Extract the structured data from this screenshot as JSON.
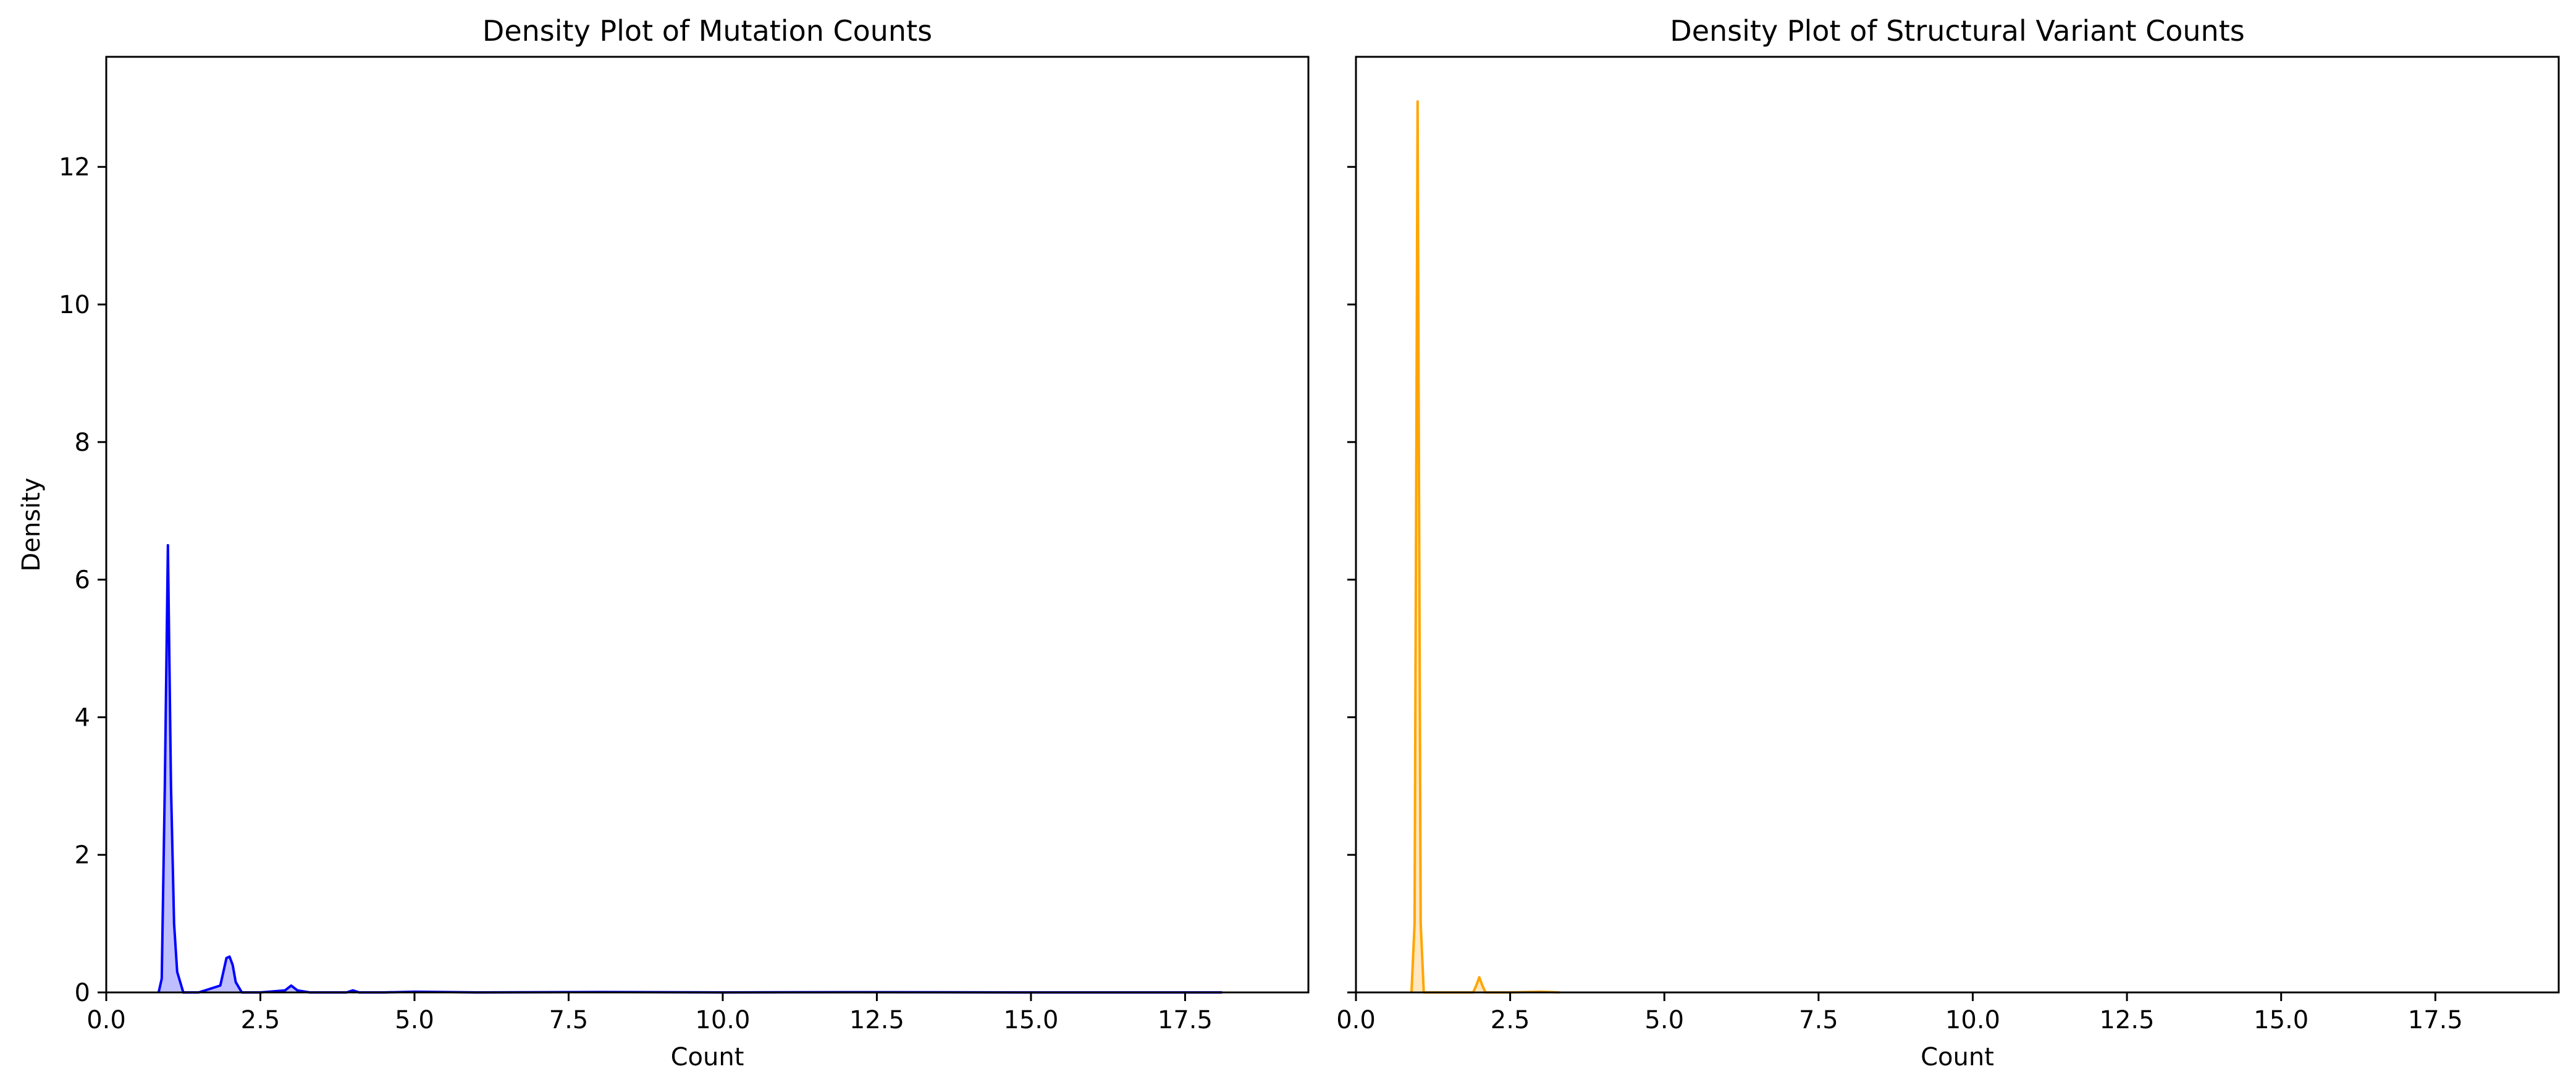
{
  "chart_data": [
    {
      "type": "area",
      "title": "Density Plot of Mutation Counts",
      "xlabel": "Count",
      "ylabel": "Density",
      "xlim": [
        0,
        19.5
      ],
      "ylim": [
        0,
        13.6
      ],
      "xticks": [
        "0.0",
        "2.5",
        "5.0",
        "7.5",
        "10.0",
        "12.5",
        "15.0",
        "17.5"
      ],
      "yticks": [
        "0",
        "2",
        "4",
        "6",
        "8",
        "10",
        "12"
      ],
      "color": "#0000ff",
      "fill_opacity": 0.25,
      "series": [
        {
          "x": [
            0.85,
            0.9,
            0.95,
            1.0,
            1.05,
            1.1,
            1.15,
            1.25,
            1.5,
            1.85,
            1.95,
            2.0,
            2.05,
            2.1,
            2.2,
            2.5,
            2.9,
            3.0,
            3.1,
            3.3,
            3.9,
            4.0,
            4.1,
            4.5,
            5.0,
            6.0,
            8.0,
            10.0,
            12.0,
            15.0,
            18.1
          ],
          "y": [
            0,
            0.2,
            3.0,
            6.5,
            3.0,
            1.0,
            0.3,
            0,
            0,
            0.1,
            0.5,
            0.52,
            0.4,
            0.15,
            0,
            0,
            0.03,
            0.1,
            0.03,
            0,
            0,
            0.03,
            0,
            0,
            0.01,
            0,
            0.005,
            0,
            0.004,
            0,
            0
          ]
        }
      ]
    },
    {
      "type": "area",
      "title": "Density Plot of Structural Variant Counts",
      "xlabel": "Count",
      "ylabel": "",
      "xlim": [
        0,
        19.5
      ],
      "ylim": [
        0,
        13.6
      ],
      "xticks": [
        "0.0",
        "2.5",
        "5.0",
        "7.5",
        "10.0",
        "12.5",
        "15.0",
        "17.5"
      ],
      "yticks": [],
      "color": "#ffa500",
      "fill_opacity": 0.25,
      "series": [
        {
          "x": [
            0.9,
            0.95,
            0.98,
            1.0,
            1.02,
            1.05,
            1.1,
            1.5,
            1.9,
            1.95,
            2.0,
            2.05,
            2.1,
            2.5,
            3.0,
            3.3
          ],
          "y": [
            0,
            1.0,
            8.0,
            12.95,
            8.0,
            1.0,
            0,
            0,
            0,
            0.1,
            0.22,
            0.1,
            0,
            0,
            0.01,
            0
          ]
        }
      ]
    }
  ]
}
